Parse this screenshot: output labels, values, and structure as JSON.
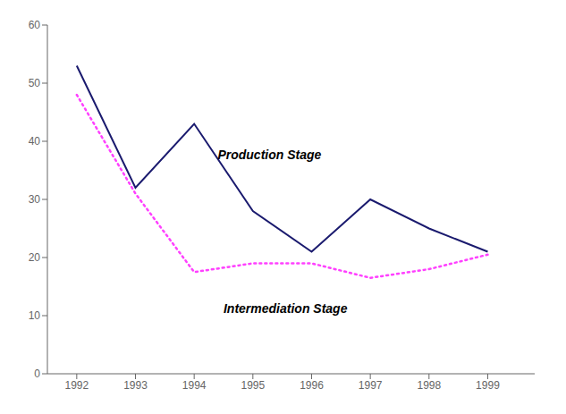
{
  "chart_data": {
    "type": "line",
    "x": [
      1992,
      1993,
      1994,
      1995,
      1996,
      1997,
      1998,
      1999
    ],
    "series": [
      {
        "color": "#1a1a6e",
        "line_style": "solid",
        "values": [
          53,
          32,
          43,
          28,
          21,
          30,
          25,
          21
        ]
      },
      {
        "color": "#ff40ff",
        "line_style": "dotted",
        "values": [
          48,
          31,
          17.5,
          19,
          19,
          16.5,
          18,
          20.5
        ]
      }
    ],
    "annotations": [
      {
        "text": "Production Stage",
        "x": 1994.4,
        "y": 37
      },
      {
        "text": "Intermediation Stage",
        "x": 1994.5,
        "y": 10.5
      }
    ],
    "xlim": [
      1991.5,
      1999.8
    ],
    "xticks": [
      1992,
      1993,
      1994,
      1995,
      1996,
      1997,
      1998,
      1999
    ],
    "ylim": [
      0,
      60
    ],
    "yticks": [
      0,
      10,
      20,
      30,
      40,
      50,
      60
    ],
    "grid": false
  }
}
